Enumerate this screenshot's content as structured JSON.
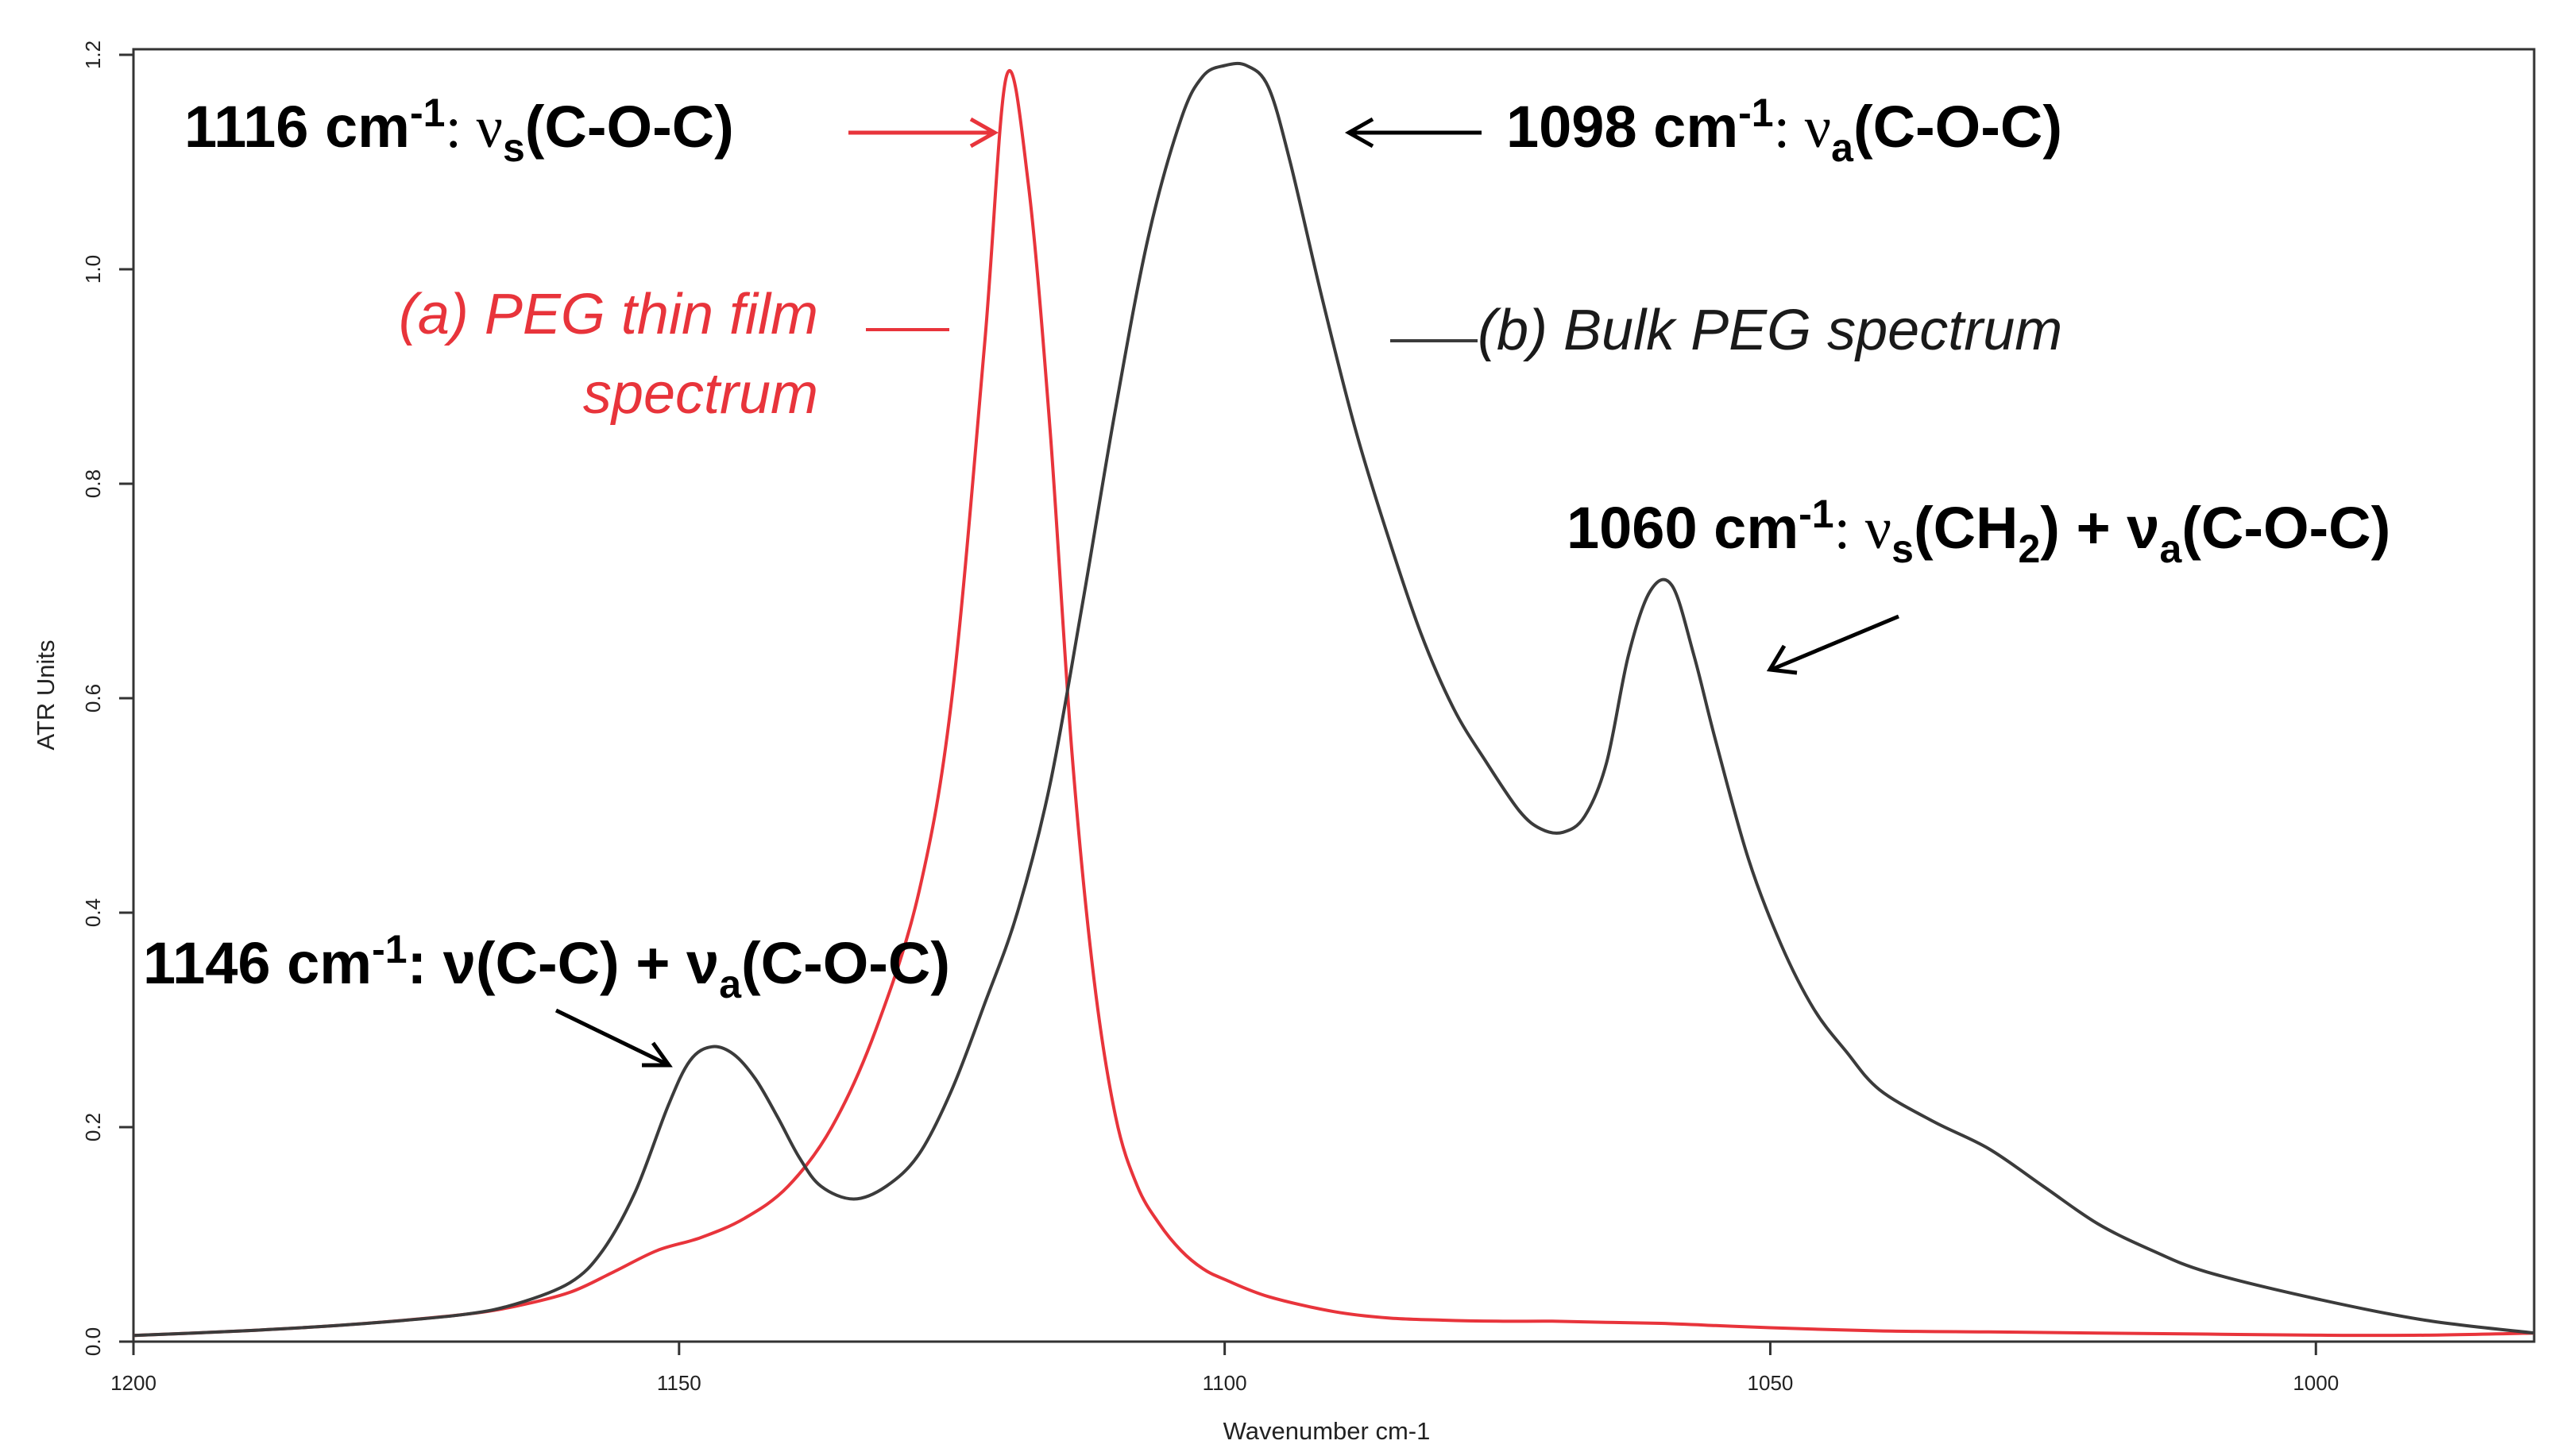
{
  "chart_data": {
    "type": "line",
    "xlabel": "Wavenumber cm-1",
    "ylabel": "ATR Units",
    "xlim": [
      1200,
      980
    ],
    "ylim": [
      0,
      1.2
    ],
    "x_ticks": [
      1200,
      1150,
      1100,
      1050,
      1000
    ],
    "x_tick_labels": [
      "1200",
      "1150",
      "1100",
      "1050",
      "1000"
    ],
    "y_ticks": [
      0.0,
      0.2,
      0.4,
      0.6,
      0.8,
      1.0,
      1.2
    ],
    "y_tick_labels": [
      "0.0",
      "0.2",
      "0.4",
      "0.6",
      "0.8",
      "1.0",
      "1.2"
    ],
    "series": [
      {
        "name": "(a) PEG thin film spectrum",
        "color": "#e8343b",
        "x": [
          1202,
          1190,
          1180,
          1170,
          1165,
          1160,
          1156,
          1152,
          1148,
          1144,
          1140,
          1136,
          1132,
          1128,
          1125,
          1122,
          1120,
          1118,
          1116,
          1114,
          1112,
          1110,
          1108,
          1106,
          1104,
          1102,
          1100,
          1096,
          1090,
          1085,
          1080,
          1075,
          1070,
          1065,
          1060,
          1055,
          1050,
          1040,
          1030,
          1020,
          1010,
          1000,
          990,
          980
        ],
        "y": [
          0.005,
          0.01,
          0.016,
          0.025,
          0.033,
          0.046,
          0.065,
          0.085,
          0.097,
          0.115,
          0.145,
          0.2,
          0.29,
          0.42,
          0.6,
          0.93,
          1.18,
          1.08,
          0.85,
          0.55,
          0.34,
          0.21,
          0.145,
          0.11,
          0.085,
          0.068,
          0.058,
          0.042,
          0.028,
          0.022,
          0.02,
          0.019,
          0.019,
          0.018,
          0.017,
          0.015,
          0.013,
          0.01,
          0.009,
          0.008,
          0.007,
          0.006,
          0.006,
          0.008
        ]
      },
      {
        "name": "(b) Bulk PEG spectrum",
        "color": "#3b3b3b",
        "x": [
          1202,
          1190,
          1180,
          1170,
          1165,
          1160,
          1157,
          1154,
          1151,
          1149,
          1147,
          1145,
          1143,
          1141,
          1139,
          1137,
          1134,
          1131,
          1128,
          1125,
          1122,
          1119,
          1116,
          1113,
          1110,
          1107,
          1104,
          1102,
          1100,
          1098,
          1096,
          1094,
          1091,
          1088,
          1085,
          1082,
          1079,
          1076,
          1073,
          1071,
          1069,
          1067,
          1065,
          1063,
          1061,
          1059,
          1057,
          1055,
          1052,
          1049,
          1046,
          1043,
          1040,
          1035,
          1030,
          1025,
          1020,
          1015,
          1010,
          1000,
          990,
          980
        ],
        "y": [
          0.005,
          0.01,
          0.016,
          0.025,
          0.035,
          0.055,
          0.085,
          0.14,
          0.22,
          0.262,
          0.275,
          0.268,
          0.245,
          0.21,
          0.172,
          0.145,
          0.133,
          0.145,
          0.175,
          0.235,
          0.315,
          0.4,
          0.52,
          0.69,
          0.87,
          1.03,
          1.14,
          1.18,
          1.19,
          1.19,
          1.17,
          1.1,
          0.97,
          0.85,
          0.75,
          0.66,
          0.59,
          0.54,
          0.495,
          0.478,
          0.475,
          0.49,
          0.54,
          0.64,
          0.7,
          0.705,
          0.64,
          0.56,
          0.45,
          0.37,
          0.31,
          0.27,
          0.235,
          0.205,
          0.18,
          0.145,
          0.11,
          0.085,
          0.065,
          0.04,
          0.02,
          0.008
        ]
      }
    ],
    "annotations": [
      {
        "label": "1116 cm",
        "sup": "-1",
        "mid": ": ν",
        "sub": "s",
        "tail": "(C-O-C)",
        "color": "#e8343b"
      },
      {
        "label": "1098 cm",
        "sup": "-1",
        "mid": ": ν",
        "sub": "a",
        "tail": "(C-O-C)",
        "color": "#000000"
      },
      {
        "label": "1060 cm",
        "sup": "-1",
        "mid": ": ν",
        "sub": "s",
        "tail": "(CH",
        "sub2": "2",
        "tail2": ") + ν",
        "sub3": "a",
        "tail3": "(C-O-C)",
        "color": "#000000"
      },
      {
        "label": "1146 cm",
        "sup": "-1",
        "mid": ": ν(C-C) + ν",
        "sub": "a",
        "tail": "(C-O-C)",
        "color": "#000000"
      }
    ],
    "legend": {
      "a_line1": "(a) PEG thin film",
      "a_line2": "spectrum",
      "b": "(b) Bulk PEG spectrum"
    }
  }
}
